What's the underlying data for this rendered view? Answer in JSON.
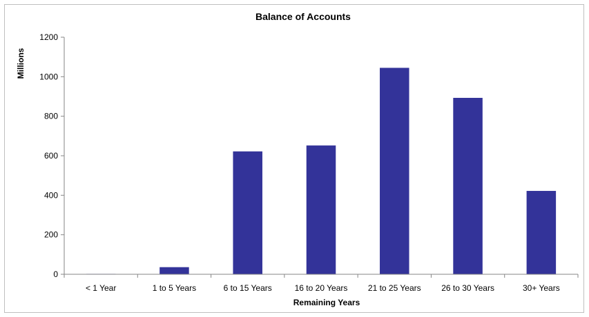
{
  "chart_data": {
    "type": "bar",
    "title": "Balance of Accounts",
    "xlabel": "Remaining Years",
    "ylabel": "Millions",
    "categories": [
      "< 1 Year",
      "1 to 5 Years",
      "6 to 15 Years",
      "16 to 20 Years",
      "21 to 25 Years",
      "26 to 30 Years",
      "30+ Years"
    ],
    "values": [
      2,
      36,
      622,
      652,
      1045,
      893,
      422
    ],
    "ylim": [
      0,
      1200
    ],
    "yticks": [
      "0",
      "200",
      "400",
      "600",
      "800",
      "1000",
      "1200"
    ],
    "grid": false,
    "legend": "none",
    "bar_color": "#333399",
    "axis_color": "#868686"
  }
}
